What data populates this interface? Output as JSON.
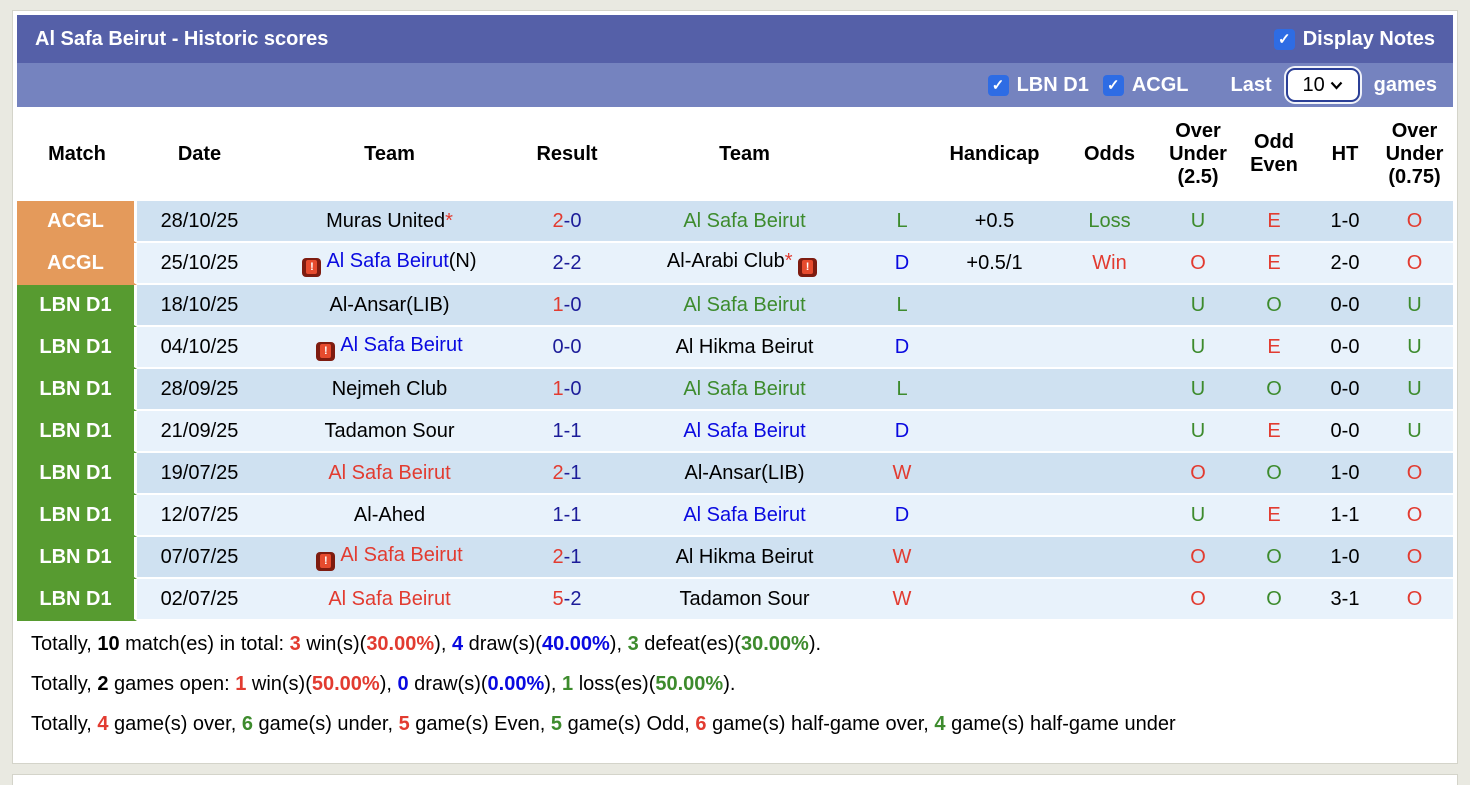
{
  "header": {
    "title": "Al Safa Beirut - Historic scores",
    "display_notes": {
      "label": "Display Notes",
      "checked": true
    }
  },
  "filters": {
    "league_checkboxes": [
      {
        "label": "LBN D1",
        "checked": true
      },
      {
        "label": "ACGL",
        "checked": true
      }
    ],
    "last_label": "Last",
    "games_count": "10",
    "games_label": "games"
  },
  "colors": {
    "title_bar": "#5560a8",
    "filter_bar": "#7583bf",
    "checkbox_blue": "#2e6ce4",
    "badge_acgl": "#e49a5b",
    "badge_lbn_d1": "#579b30",
    "row_dark": "#cfe1f1",
    "row_light": "#e8f2fb",
    "win_red": "#e23b30",
    "draw_blue": "#0909e0",
    "loss_green": "#3d8b2d",
    "score_navy": "#1c1c99"
  },
  "icons": {
    "card_note": "red-card-icon",
    "checkbox_check": "checkmark-icon",
    "select_chevron": "chevron-down-icon"
  },
  "table": {
    "columns": [
      "Match",
      "Date",
      "Team",
      "Result",
      "Team",
      "",
      "Handicap",
      "Odds",
      "Over Under (2.5)",
      "Odd Even",
      "HT",
      "Over Under (0.75)"
    ],
    "rows": [
      {
        "league": "ACGL",
        "league_class": "acgl",
        "date": "28/10/25",
        "home": {
          "name": "Muras United",
          "color": "black",
          "star": true,
          "suffix": "",
          "icon_before": false,
          "icon_after": false
        },
        "result": [
          {
            "t": "2",
            "c": "red"
          },
          {
            "t": "-0",
            "c": "navy"
          }
        ],
        "away": {
          "name": "Al Safa Beirut",
          "color": "green",
          "star": false,
          "suffix": "",
          "icon_before": false,
          "icon_after": false
        },
        "wdl": {
          "t": "L",
          "c": "green"
        },
        "handicap": "+0.5",
        "odds": {
          "t": "Loss",
          "c": "green"
        },
        "ou25": {
          "t": "U",
          "c": "green"
        },
        "oe": {
          "t": "E",
          "c": "red"
        },
        "ht": "1-0",
        "ou075": {
          "t": "O",
          "c": "red"
        }
      },
      {
        "league": "ACGL",
        "league_class": "acgl",
        "date": "25/10/25",
        "home": {
          "name": "Al Safa Beirut",
          "color": "blue",
          "star": false,
          "suffix": "(N)",
          "icon_before": true,
          "icon_after": false
        },
        "result": [
          {
            "t": "2-2",
            "c": "navy"
          }
        ],
        "away": {
          "name": "Al-Arabi Club",
          "color": "black",
          "star": true,
          "suffix": "",
          "icon_before": false,
          "icon_after": true
        },
        "wdl": {
          "t": "D",
          "c": "blue"
        },
        "handicap": "+0.5/1",
        "odds": {
          "t": "Win",
          "c": "red"
        },
        "ou25": {
          "t": "O",
          "c": "red"
        },
        "oe": {
          "t": "E",
          "c": "red"
        },
        "ht": "2-0",
        "ou075": {
          "t": "O",
          "c": "red"
        }
      },
      {
        "league": "LBN D1",
        "league_class": "lbn",
        "date": "18/10/25",
        "home": {
          "name": "Al-Ansar(LIB)",
          "color": "black",
          "star": false,
          "suffix": "",
          "icon_before": false,
          "icon_after": false
        },
        "result": [
          {
            "t": "1",
            "c": "red"
          },
          {
            "t": "-0",
            "c": "navy"
          }
        ],
        "away": {
          "name": "Al Safa Beirut",
          "color": "green",
          "star": false,
          "suffix": "",
          "icon_before": false,
          "icon_after": false
        },
        "wdl": {
          "t": "L",
          "c": "green"
        },
        "handicap": "",
        "odds": {
          "t": "",
          "c": "black"
        },
        "ou25": {
          "t": "U",
          "c": "green"
        },
        "oe": {
          "t": "O",
          "c": "green"
        },
        "ht": "0-0",
        "ou075": {
          "t": "U",
          "c": "green"
        }
      },
      {
        "league": "LBN D1",
        "league_class": "lbn",
        "date": "04/10/25",
        "home": {
          "name": "Al Safa Beirut",
          "color": "blue",
          "star": false,
          "suffix": "",
          "icon_before": true,
          "icon_after": false
        },
        "result": [
          {
            "t": "0-0",
            "c": "navy"
          }
        ],
        "away": {
          "name": "Al Hikma Beirut",
          "color": "black",
          "star": false,
          "suffix": "",
          "icon_before": false,
          "icon_after": false
        },
        "wdl": {
          "t": "D",
          "c": "blue"
        },
        "handicap": "",
        "odds": {
          "t": "",
          "c": "black"
        },
        "ou25": {
          "t": "U",
          "c": "green"
        },
        "oe": {
          "t": "E",
          "c": "red"
        },
        "ht": "0-0",
        "ou075": {
          "t": "U",
          "c": "green"
        }
      },
      {
        "league": "LBN D1",
        "league_class": "lbn",
        "date": "28/09/25",
        "home": {
          "name": "Nejmeh Club",
          "color": "black",
          "star": false,
          "suffix": "",
          "icon_before": false,
          "icon_after": false
        },
        "result": [
          {
            "t": "1",
            "c": "red"
          },
          {
            "t": "-0",
            "c": "navy"
          }
        ],
        "away": {
          "name": "Al Safa Beirut",
          "color": "green",
          "star": false,
          "suffix": "",
          "icon_before": false,
          "icon_after": false
        },
        "wdl": {
          "t": "L",
          "c": "green"
        },
        "handicap": "",
        "odds": {
          "t": "",
          "c": "black"
        },
        "ou25": {
          "t": "U",
          "c": "green"
        },
        "oe": {
          "t": "O",
          "c": "green"
        },
        "ht": "0-0",
        "ou075": {
          "t": "U",
          "c": "green"
        }
      },
      {
        "league": "LBN D1",
        "league_class": "lbn",
        "date": "21/09/25",
        "home": {
          "name": "Tadamon Sour",
          "color": "black",
          "star": false,
          "suffix": "",
          "icon_before": false,
          "icon_after": false
        },
        "result": [
          {
            "t": "1-1",
            "c": "navy"
          }
        ],
        "away": {
          "name": "Al Safa Beirut",
          "color": "blue",
          "star": false,
          "suffix": "",
          "icon_before": false,
          "icon_after": false
        },
        "wdl": {
          "t": "D",
          "c": "blue"
        },
        "handicap": "",
        "odds": {
          "t": "",
          "c": "black"
        },
        "ou25": {
          "t": "U",
          "c": "green"
        },
        "oe": {
          "t": "E",
          "c": "red"
        },
        "ht": "0-0",
        "ou075": {
          "t": "U",
          "c": "green"
        }
      },
      {
        "league": "LBN D1",
        "league_class": "lbn",
        "date": "19/07/25",
        "home": {
          "name": "Al Safa Beirut",
          "color": "red",
          "star": false,
          "suffix": "",
          "icon_before": false,
          "icon_after": false
        },
        "result": [
          {
            "t": "2",
            "c": "red"
          },
          {
            "t": "-1",
            "c": "navy"
          }
        ],
        "away": {
          "name": "Al-Ansar(LIB)",
          "color": "black",
          "star": false,
          "suffix": "",
          "icon_before": false,
          "icon_after": false
        },
        "wdl": {
          "t": "W",
          "c": "red"
        },
        "handicap": "",
        "odds": {
          "t": "",
          "c": "black"
        },
        "ou25": {
          "t": "O",
          "c": "red"
        },
        "oe": {
          "t": "O",
          "c": "green"
        },
        "ht": "1-0",
        "ou075": {
          "t": "O",
          "c": "red"
        }
      },
      {
        "league": "LBN D1",
        "league_class": "lbn",
        "date": "12/07/25",
        "home": {
          "name": "Al-Ahed",
          "color": "black",
          "star": false,
          "suffix": "",
          "icon_before": false,
          "icon_after": false
        },
        "result": [
          {
            "t": "1-1",
            "c": "navy"
          }
        ],
        "away": {
          "name": "Al Safa Beirut",
          "color": "blue",
          "star": false,
          "suffix": "",
          "icon_before": false,
          "icon_after": false
        },
        "wdl": {
          "t": "D",
          "c": "blue"
        },
        "handicap": "",
        "odds": {
          "t": "",
          "c": "black"
        },
        "ou25": {
          "t": "U",
          "c": "green"
        },
        "oe": {
          "t": "E",
          "c": "red"
        },
        "ht": "1-1",
        "ou075": {
          "t": "O",
          "c": "red"
        }
      },
      {
        "league": "LBN D1",
        "league_class": "lbn",
        "date": "07/07/25",
        "home": {
          "name": "Al Safa Beirut",
          "color": "red",
          "star": false,
          "suffix": "",
          "icon_before": true,
          "icon_after": false
        },
        "result": [
          {
            "t": "2",
            "c": "red"
          },
          {
            "t": "-1",
            "c": "navy"
          }
        ],
        "away": {
          "name": "Al Hikma Beirut",
          "color": "black",
          "star": false,
          "suffix": "",
          "icon_before": false,
          "icon_after": false
        },
        "wdl": {
          "t": "W",
          "c": "red"
        },
        "handicap": "",
        "odds": {
          "t": "",
          "c": "black"
        },
        "ou25": {
          "t": "O",
          "c": "red"
        },
        "oe": {
          "t": "O",
          "c": "green"
        },
        "ht": "1-0",
        "ou075": {
          "t": "O",
          "c": "red"
        }
      },
      {
        "league": "LBN D1",
        "league_class": "lbn",
        "date": "02/07/25",
        "home": {
          "name": "Al Safa Beirut",
          "color": "red",
          "star": false,
          "suffix": "",
          "icon_before": false,
          "icon_after": false
        },
        "result": [
          {
            "t": "5",
            "c": "red"
          },
          {
            "t": "-2",
            "c": "navy"
          }
        ],
        "away": {
          "name": "Tadamon Sour",
          "color": "black",
          "star": false,
          "suffix": "",
          "icon_before": false,
          "icon_after": false
        },
        "wdl": {
          "t": "W",
          "c": "red"
        },
        "handicap": "",
        "odds": {
          "t": "",
          "c": "black"
        },
        "ou25": {
          "t": "O",
          "c": "red"
        },
        "oe": {
          "t": "O",
          "c": "green"
        },
        "ht": "3-1",
        "ou075": {
          "t": "O",
          "c": "red"
        }
      }
    ]
  },
  "summary": [
    [
      {
        "t": "Totally, "
      },
      {
        "t": "10",
        "b": true
      },
      {
        "t": " match(es) in total: "
      },
      {
        "t": "3",
        "c": "red",
        "b": true
      },
      {
        "t": " win(s)("
      },
      {
        "t": "30.00%",
        "c": "red",
        "b": true
      },
      {
        "t": "), "
      },
      {
        "t": "4",
        "c": "blue",
        "b": true
      },
      {
        "t": " draw(s)("
      },
      {
        "t": "40.00%",
        "c": "blue",
        "b": true
      },
      {
        "t": "), "
      },
      {
        "t": "3",
        "c": "green",
        "b": true
      },
      {
        "t": " defeat(es)("
      },
      {
        "t": "30.00%",
        "c": "green",
        "b": true
      },
      {
        "t": ")."
      }
    ],
    [
      {
        "t": "Totally, "
      },
      {
        "t": "2",
        "b": true
      },
      {
        "t": " games open: "
      },
      {
        "t": "1",
        "c": "red",
        "b": true
      },
      {
        "t": " win(s)("
      },
      {
        "t": "50.00%",
        "c": "red",
        "b": true
      },
      {
        "t": "), "
      },
      {
        "t": "0",
        "c": "blue",
        "b": true
      },
      {
        "t": " draw(s)("
      },
      {
        "t": "0.00%",
        "c": "blue",
        "b": true
      },
      {
        "t": "), "
      },
      {
        "t": "1",
        "c": "green",
        "b": true
      },
      {
        "t": " loss(es)("
      },
      {
        "t": "50.00%",
        "c": "green",
        "b": true
      },
      {
        "t": ")."
      }
    ],
    [
      {
        "t": "Totally, "
      },
      {
        "t": "4",
        "c": "red",
        "b": true
      },
      {
        "t": " game(s) over, "
      },
      {
        "t": "6",
        "c": "green",
        "b": true
      },
      {
        "t": " game(s) under, "
      },
      {
        "t": "5",
        "c": "red",
        "b": true
      },
      {
        "t": " game(s) Even, "
      },
      {
        "t": "5",
        "c": "green",
        "b": true
      },
      {
        "t": " game(s) Odd, "
      },
      {
        "t": "6",
        "c": "red",
        "b": true
      },
      {
        "t": " game(s) half-game over, "
      },
      {
        "t": "4",
        "c": "green",
        "b": true
      },
      {
        "t": " game(s) half-game under"
      }
    ]
  ]
}
